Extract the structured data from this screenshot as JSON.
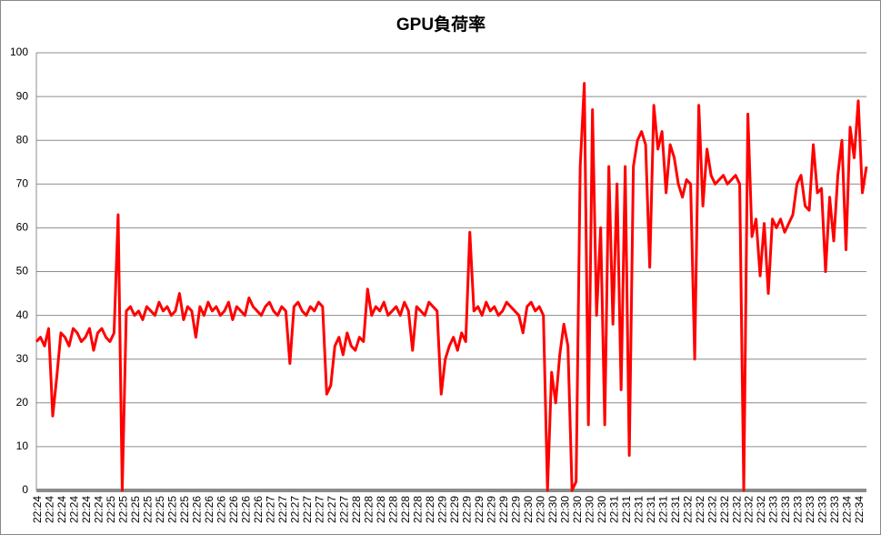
{
  "chart_data": {
    "type": "line",
    "title": "GPU負荷率",
    "color": "#ff0000",
    "grid": true,
    "ylim": [
      0,
      100
    ],
    "yticks": [
      0,
      10,
      20,
      30,
      40,
      50,
      60,
      70,
      80,
      90,
      100
    ],
    "categories": [
      "22:24",
      null,
      null,
      "22:24",
      null,
      null,
      "22:24",
      null,
      null,
      "22:24",
      null,
      null,
      "22:24",
      null,
      null,
      "22:24",
      null,
      null,
      "22:25",
      null,
      null,
      "22:25",
      null,
      null,
      "22:25",
      null,
      null,
      "22:25",
      null,
      null,
      "22:25",
      null,
      null,
      "22:25",
      null,
      null,
      "22:25",
      null,
      null,
      "22:26",
      null,
      null,
      "22:26",
      null,
      null,
      "22:26",
      null,
      null,
      "22:26",
      null,
      null,
      "22:26",
      null,
      null,
      "22:26",
      null,
      null,
      "22:27",
      null,
      null,
      "22:27",
      null,
      null,
      "22:27",
      null,
      null,
      "22:27",
      null,
      null,
      "22:27",
      null,
      null,
      "22:27",
      null,
      null,
      "22:27",
      null,
      null,
      "22:28",
      null,
      null,
      "22:28",
      null,
      null,
      "22:28",
      null,
      null,
      "22:28",
      null,
      null,
      "22:28",
      null,
      null,
      "22:28",
      null,
      null,
      "22:28",
      null,
      null,
      "22:29",
      null,
      null,
      "22:29",
      null,
      null,
      "22:29",
      null,
      null,
      "22:29",
      null,
      null,
      "22:29",
      null,
      null,
      "22:29",
      null,
      null,
      "22:29",
      null,
      null,
      "22:30",
      null,
      null,
      "22:30",
      null,
      null,
      "22:30",
      null,
      null,
      "22:30",
      null,
      null,
      "22:30",
      null,
      null,
      "22:30",
      null,
      null,
      "22:30",
      null,
      null,
      "22:31",
      null,
      null,
      "22:31",
      null,
      null,
      "22:31",
      null,
      null,
      "22:31",
      null,
      null,
      "22:31",
      null,
      null,
      "22:31",
      null,
      null,
      "22:32",
      null,
      null,
      "22:32",
      null,
      null,
      "22:32",
      null,
      null,
      "22:32",
      null,
      null,
      "22:32",
      null,
      null,
      "22:32",
      null,
      null,
      "22:32",
      null,
      null,
      "22:33",
      null,
      null,
      "22:33",
      null,
      null,
      "22:33",
      null,
      null,
      "22:33",
      null,
      null,
      "22:33",
      null,
      null,
      "22:33",
      null,
      null,
      "22:34",
      null,
      null,
      "22:34",
      null,
      null
    ],
    "values": [
      34,
      35,
      33,
      37,
      17,
      26,
      36,
      35,
      33,
      37,
      36,
      34,
      35,
      37,
      32,
      36,
      37,
      35,
      34,
      36,
      63,
      0,
      41,
      42,
      40,
      41,
      39,
      42,
      41,
      40,
      43,
      41,
      42,
      40,
      41,
      45,
      39,
      42,
      41,
      35,
      42,
      40,
      43,
      41,
      42,
      40,
      41,
      43,
      39,
      42,
      41,
      40,
      44,
      42,
      41,
      40,
      42,
      43,
      41,
      40,
      42,
      41,
      29,
      42,
      43,
      41,
      40,
      42,
      41,
      43,
      42,
      22,
      24,
      33,
      35,
      31,
      36,
      33,
      32,
      35,
      34,
      46,
      40,
      42,
      41,
      43,
      40,
      41,
      42,
      40,
      43,
      41,
      32,
      42,
      41,
      40,
      43,
      42,
      41,
      22,
      30,
      33,
      35,
      32,
      36,
      34,
      59,
      41,
      42,
      40,
      43,
      41,
      42,
      40,
      41,
      43,
      42,
      41,
      40,
      36,
      42,
      43,
      41,
      42,
      40,
      0,
      27,
      20,
      31,
      38,
      33,
      0,
      2,
      74,
      93,
      15,
      87,
      40,
      60,
      15,
      74,
      38,
      70,
      23,
      74,
      8,
      74,
      80,
      82,
      79,
      51,
      88,
      78,
      82,
      68,
      79,
      76,
      70,
      67,
      71,
      70,
      30,
      88,
      65,
      78,
      72,
      70,
      71,
      72,
      70,
      71,
      72,
      70,
      0,
      86,
      58,
      62,
      49,
      61,
      45,
      62,
      60,
      62,
      59,
      61,
      63,
      70,
      72,
      65,
      64,
      79,
      68,
      69,
      50,
      67,
      57,
      72,
      80,
      55,
      83,
      76,
      89,
      68,
      74
    ]
  }
}
